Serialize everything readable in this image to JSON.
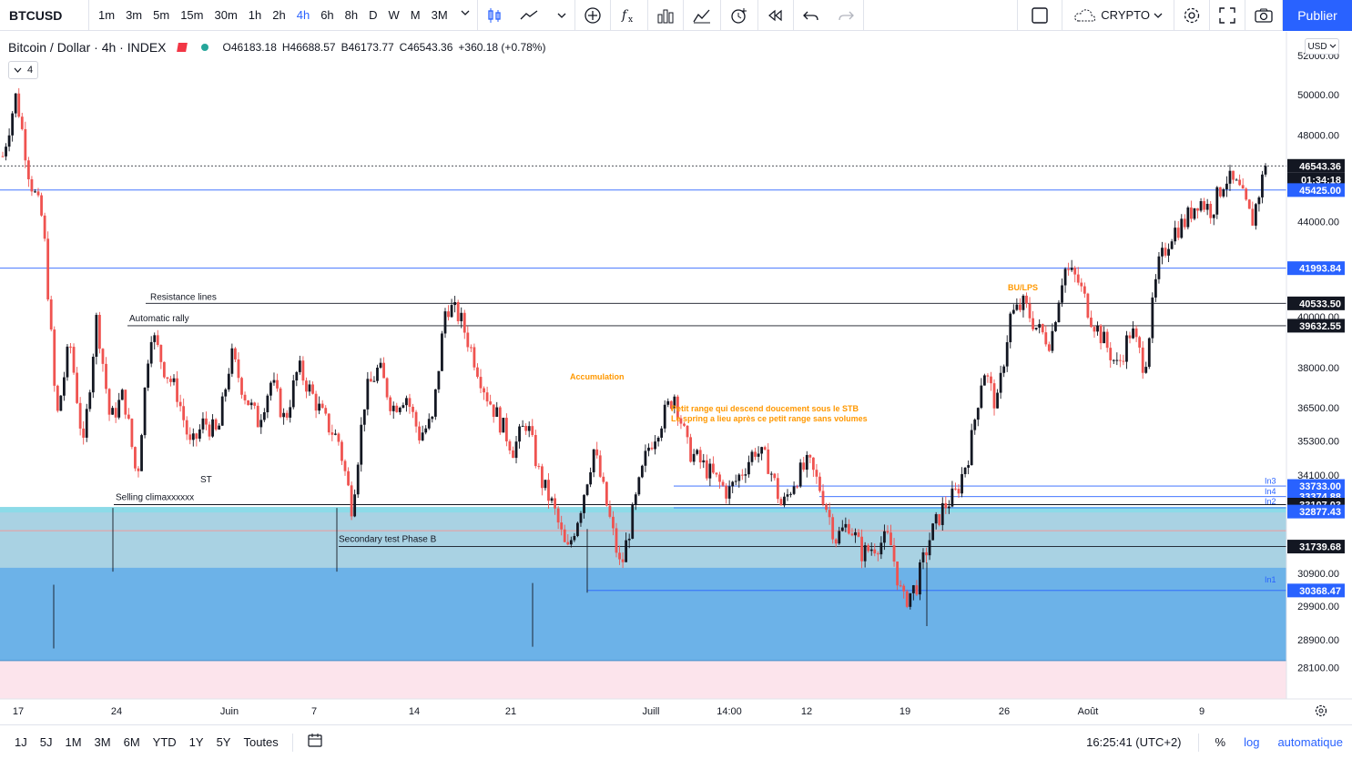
{
  "toolbar": {
    "symbol": "BTCUSD",
    "timeframes": [
      "1m",
      "3m",
      "5m",
      "15m",
      "30m",
      "1h",
      "2h",
      "4h",
      "6h",
      "8h",
      "D",
      "W",
      "M",
      "3M"
    ],
    "active_timeframe": "4h",
    "account_label": "CRYPTO",
    "publish_label": "Publier",
    "icons": [
      "chevron-down-icon",
      "candles-icon",
      "line-chart-icon",
      "add-icon",
      "fx-indicators-icon",
      "bar-chart-icon",
      "templates-icon",
      "alert-icon",
      "replay-icon",
      "undo-icon",
      "redo-icon",
      "layout-square-icon",
      "cloud-icon",
      "settings-icon",
      "fullscreen-icon",
      "camera-icon"
    ]
  },
  "legend": {
    "title": "Bitcoin / Dollar · 4h · INDEX",
    "open": "O46183.18",
    "high": "H46688.57",
    "low": "B46173.77",
    "close": "C46543.36",
    "change": "+360.18 (+0.78%)",
    "indicator_count": "4"
  },
  "currency": "USD",
  "colors": {
    "up": "#131722",
    "down": "#ef5350",
    "accent": "#2962ff",
    "hline_blue": "#2962ff",
    "hline_black": "#131722",
    "annotation_orange": "#ff9800",
    "zone_teal": "#80deea",
    "zone_lightblue": "#a8cfe0",
    "zone_blue": "#6cb2e8",
    "zone_pink": "#fce4ec"
  },
  "chart_data": {
    "type": "candlestick",
    "y_axis_ticks": [
      "52000.00",
      "50000.00",
      "48000.00",
      "44000.00",
      "40000.00",
      "38000.00",
      "36500.00",
      "35300.00",
      "34100.00",
      "30900.00",
      "29900.00",
      "28900.00",
      "28100.00"
    ],
    "y_range": [
      27500,
      52500
    ],
    "log_scale": true,
    "x_axis_ticks": [
      "17",
      "24",
      "Juin",
      "7",
      "14",
      "21",
      "Juill",
      "14:00",
      "12",
      "19",
      "26",
      "Août",
      "9"
    ],
    "price_labels": [
      {
        "value": "46543.36",
        "kind": "last"
      },
      {
        "value": "01:34:18",
        "kind": "countdown"
      },
      {
        "value": "45425.00",
        "kind": "blue"
      },
      {
        "value": "41993.84",
        "kind": "blue"
      },
      {
        "value": "40533.50",
        "kind": "black"
      },
      {
        "value": "39632.55",
        "kind": "black"
      },
      {
        "value": "33733.00",
        "kind": "blue"
      },
      {
        "value": "33374.88",
        "kind": "blue"
      },
      {
        "value": "33107.03",
        "kind": "black"
      },
      {
        "value": "32877.43",
        "kind": "blue"
      },
      {
        "value": "31739.68",
        "kind": "black"
      },
      {
        "value": "30368.47",
        "kind": "blue"
      }
    ],
    "line_tags": [
      "In3",
      "In4",
      "In2",
      "In1"
    ],
    "annotations": [
      {
        "text": "Resistance lines",
        "color": "black"
      },
      {
        "text": "Automatic rally",
        "color": "black"
      },
      {
        "text": "ST",
        "color": "black"
      },
      {
        "text": "Selling climaxxxxxx",
        "color": "black"
      },
      {
        "text": "Secondary test Phase B",
        "color": "black"
      },
      {
        "text": "Accumulation",
        "color": "orange"
      },
      {
        "text": "Petit range qui descend doucement sous le STB",
        "color": "orange"
      },
      {
        "text": "Le spring a lieu après ce petit range sans volumes",
        "color": "orange"
      },
      {
        "text": "BU/LPS",
        "color": "orange"
      }
    ],
    "price_path": [
      47000,
      50000,
      46000,
      44000,
      36000,
      39000,
      35000,
      40000,
      36000,
      37000,
      33900,
      39500,
      38000,
      37000,
      35000,
      36000,
      35500,
      38500,
      37000,
      36000,
      37500,
      36000,
      38000,
      37000,
      36000,
      35300,
      33000,
      37000,
      38000,
      36500,
      37000,
      35500,
      36000,
      40500,
      40000,
      38500,
      37000,
      36000,
      35000,
      36000,
      34000,
      33000,
      31500,
      33000,
      35000,
      33000,
      31000,
      33000,
      35000,
      36000,
      37000,
      35000,
      34500,
      34000,
      33500,
      34200,
      35000,
      34500,
      33000,
      34000,
      34500,
      33500,
      32000,
      32500,
      31500,
      31800,
      32000,
      30000,
      30500,
      32000,
      33000,
      33500,
      35000,
      38000,
      36500,
      40000,
      40500,
      39500,
      39000,
      42000,
      41500,
      40000,
      39000,
      38000,
      39500,
      38000,
      42000,
      43500,
      44000,
      45000,
      44500,
      46000,
      45500,
      44000,
      46543
    ]
  },
  "bottombar": {
    "ranges": [
      "1J",
      "5J",
      "1M",
      "3M",
      "6M",
      "YTD",
      "1Y",
      "5Y",
      "Toutes"
    ],
    "time": "16:25:41 (UTC+2)",
    "percent_label": "%",
    "log_label": "log",
    "auto_label": "automatique"
  }
}
